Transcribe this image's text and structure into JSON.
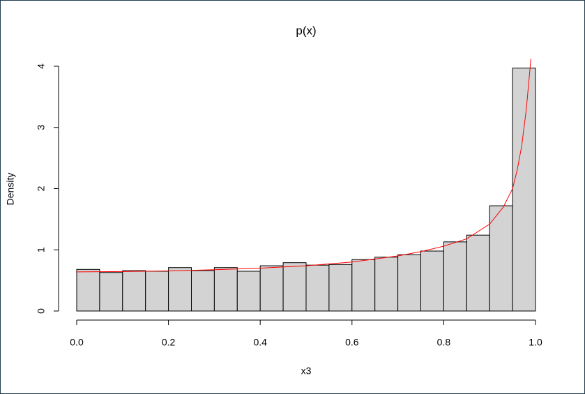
{
  "chart_data": {
    "type": "histogram",
    "title": "p(x)",
    "xlabel": "x3",
    "ylabel": "Density",
    "bins": [
      0,
      0.05,
      0.1,
      0.15,
      0.2,
      0.25,
      0.3,
      0.35,
      0.4,
      0.45,
      0.5,
      0.55,
      0.6,
      0.65,
      0.7,
      0.75,
      0.8,
      0.85,
      0.9,
      0.95,
      1
    ],
    "counts": [
      0.68,
      0.63,
      0.66,
      0.65,
      0.71,
      0.66,
      0.71,
      0.65,
      0.74,
      0.79,
      0.75,
      0.76,
      0.84,
      0.88,
      0.92,
      0.98,
      1.13,
      1.24,
      1.72,
      3.97
    ],
    "color": "#d3d3d3",
    "xlim": [
      0,
      1
    ],
    "ylim": [
      0,
      4
    ],
    "xticks": [
      {
        "value": 0,
        "label": "0.0"
      },
      {
        "value": 0.2,
        "label": "0.2"
      },
      {
        "value": 0.4,
        "label": "0.4"
      },
      {
        "value": 0.6,
        "label": "0.6"
      },
      {
        "value": 0.8,
        "label": "0.8"
      },
      {
        "value": 1,
        "label": "1.0"
      }
    ],
    "yticks": [
      0,
      1,
      2,
      3,
      4
    ],
    "series": [
      {
        "type": "line",
        "color": "#ff0000",
        "x": [
          0,
          0.1,
          0.2,
          0.3,
          0.4,
          0.5,
          0.6,
          0.7,
          0.75,
          0.8,
          0.85,
          0.9,
          0.93,
          0.95,
          0.96,
          0.97,
          0.98,
          0.99
        ],
        "values": [
          0.64,
          0.645,
          0.655,
          0.675,
          0.7,
          0.74,
          0.8,
          0.9,
          0.97,
          1.06,
          1.18,
          1.42,
          1.7,
          2.0,
          2.3,
          2.7,
          3.3,
          4.12
        ]
      }
    ]
  }
}
